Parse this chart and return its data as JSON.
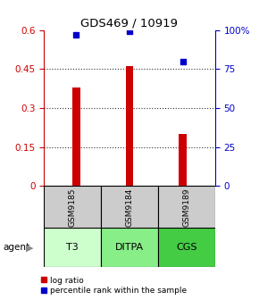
{
  "title": "GDS469 / 10919",
  "samples": [
    "GSM9185",
    "GSM9184",
    "GSM9189"
  ],
  "agents": [
    "T3",
    "DITPA",
    "CGS"
  ],
  "log_ratios": [
    0.38,
    0.46,
    0.2
  ],
  "percentile_ranks": [
    97,
    99,
    80
  ],
  "bar_color": "#cc0000",
  "point_color": "#0000cc",
  "ylim_left": [
    0,
    0.6
  ],
  "ylim_right": [
    0,
    100
  ],
  "yticks_left": [
    0,
    0.15,
    0.3,
    0.45,
    0.6
  ],
  "ytick_labels_left": [
    "0",
    "0.15",
    "0.3",
    "0.45",
    "0.6"
  ],
  "yticks_right": [
    0,
    25,
    50,
    75,
    100
  ],
  "ytick_labels_right": [
    "0",
    "25",
    "50",
    "75",
    "100%"
  ],
  "left_axis_color": "#cc0000",
  "right_axis_color": "#0000cc",
  "grid_color": "#333333",
  "sample_bg": "#cccccc",
  "agent_colors": [
    "#ccffcc",
    "#88ee88",
    "#44cc44"
  ],
  "legend_bar_label": "log ratio",
  "legend_point_label": "percentile rank within the sample",
  "agent_label": "agent",
  "bar_width": 0.15
}
